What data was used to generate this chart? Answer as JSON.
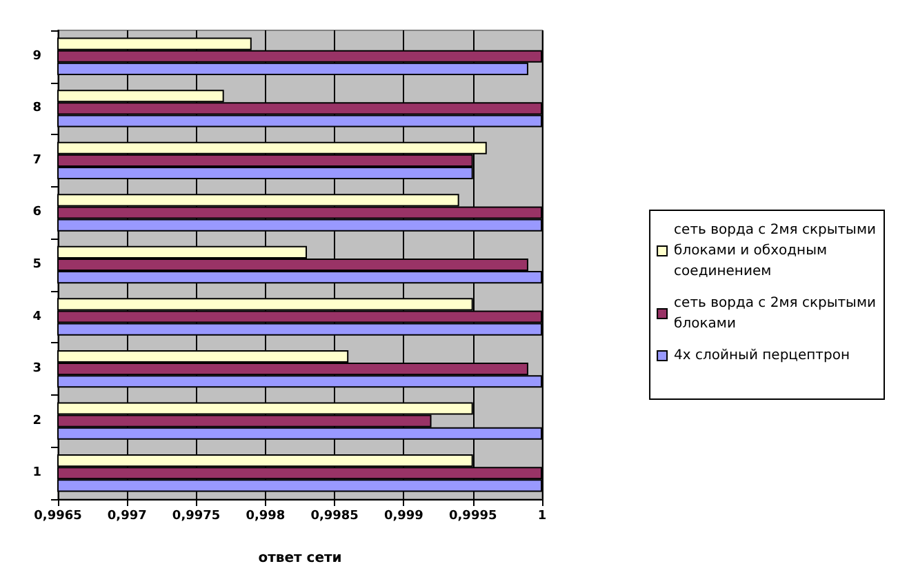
{
  "chart_data": {
    "type": "bar",
    "orientation": "horizontal",
    "categories": [
      "9",
      "8",
      "7",
      "6",
      "5",
      "4",
      "3",
      "2",
      "1"
    ],
    "xlabel": "ответ сети",
    "xlim": [
      0.9965,
      1
    ],
    "xticks": [
      {
        "value": 0.9965,
        "label": "0,9965"
      },
      {
        "value": 0.997,
        "label": "0,997"
      },
      {
        "value": 0.9975,
        "label": "0,9975"
      },
      {
        "value": 0.998,
        "label": "0,998"
      },
      {
        "value": 0.9985,
        "label": "0,9985"
      },
      {
        "value": 0.999,
        "label": "0,999"
      },
      {
        "value": 0.9995,
        "label": "0,9995"
      },
      1
    ],
    "grid": "x",
    "legend": "right",
    "series": [
      {
        "name": "сеть ворда с 2мя скрытыми блоками и обходным соединением",
        "color": "#ffffcc",
        "values": [
          0.9979,
          0.9977,
          0.9996,
          0.9994,
          0.9983,
          0.9995,
          0.9986,
          0.9995,
          0.9995
        ]
      },
      {
        "name": "сеть ворда с 2мя скрытыми блоками",
        "color": "#993366",
        "values": [
          1,
          1,
          0.9995,
          1,
          0.9999,
          1,
          0.9999,
          0.9992,
          1
        ]
      },
      {
        "name": "4х слойный перцептрон",
        "color": "#9999ff",
        "values": [
          0.9999,
          1,
          0.9995,
          1,
          1,
          1,
          1,
          1,
          1
        ]
      }
    ]
  }
}
